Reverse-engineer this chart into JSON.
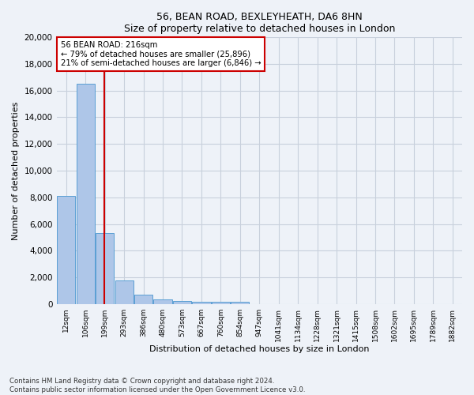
{
  "title": "56, BEAN ROAD, BEXLEYHEATH, DA6 8HN",
  "subtitle": "Size of property relative to detached houses in London",
  "xlabel": "Distribution of detached houses by size in London",
  "ylabel": "Number of detached properties",
  "footnote1": "Contains HM Land Registry data © Crown copyright and database right 2024.",
  "footnote2": "Contains public sector information licensed under the Open Government Licence v3.0.",
  "categories": [
    "12sqm",
    "106sqm",
    "199sqm",
    "293sqm",
    "386sqm",
    "480sqm",
    "573sqm",
    "667sqm",
    "760sqm",
    "854sqm",
    "947sqm",
    "1041sqm",
    "1134sqm",
    "1228sqm",
    "1321sqm",
    "1415sqm",
    "1508sqm",
    "1602sqm",
    "1695sqm",
    "1789sqm",
    "1882sqm"
  ],
  "bar_values": [
    8100,
    16500,
    5300,
    1750,
    700,
    350,
    260,
    200,
    150,
    200,
    0,
    0,
    0,
    0,
    0,
    0,
    0,
    0,
    0,
    0,
    0
  ],
  "bar_color": "#aec6e8",
  "bar_edge_color": "#5a9fd4",
  "vline_color": "#cc0000",
  "annotation_text": "56 BEAN ROAD: 216sqm\n← 79% of detached houses are smaller (25,896)\n21% of semi-detached houses are larger (6,846) →",
  "annotation_box_color": "#cc0000",
  "ylim": [
    0,
    20000
  ],
  "yticks": [
    0,
    2000,
    4000,
    6000,
    8000,
    10000,
    12000,
    14000,
    16000,
    18000,
    20000
  ],
  "grid_color": "#c8d0dc",
  "bg_color": "#eef2f8"
}
